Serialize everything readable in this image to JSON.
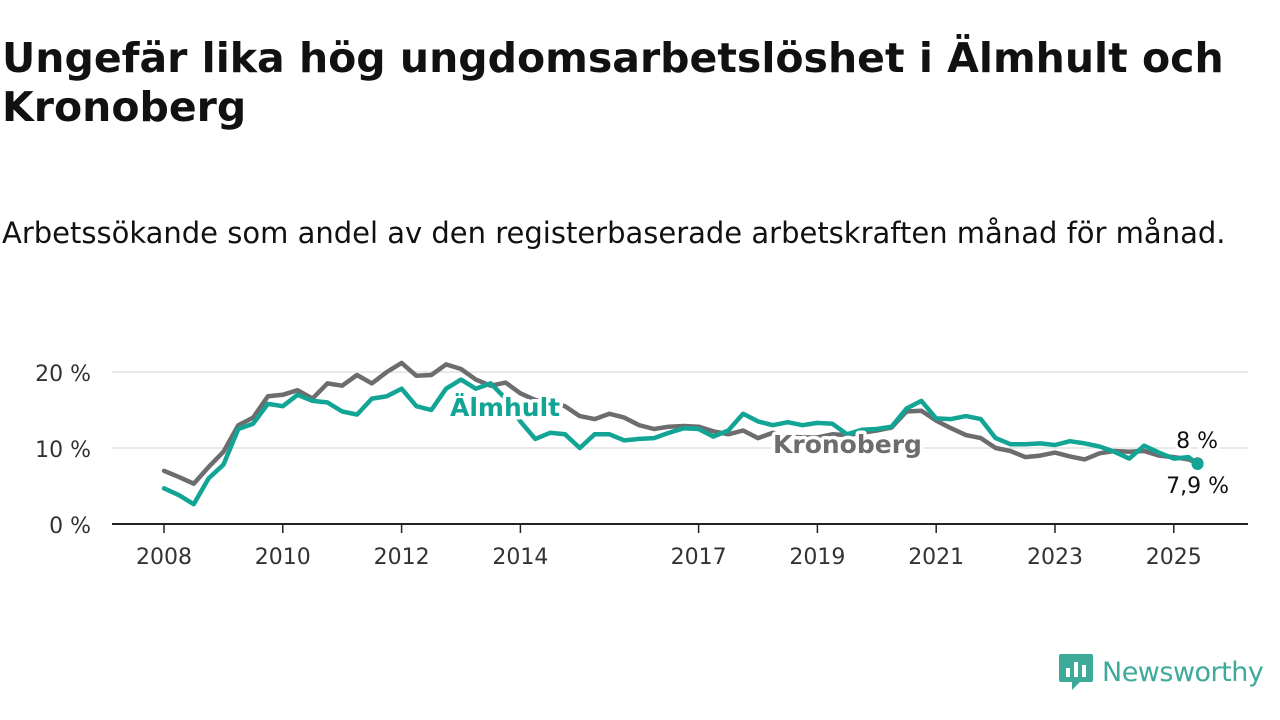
{
  "title": "Ungefär lika hög ungdomsarbetslöshet i Älmhult och Kronoberg",
  "subtitle": "Arbetssökande som andel av den registerbaserade arbetskraften månad för månad.",
  "brand": {
    "name": "Newsworthy",
    "color": "#3daa9a"
  },
  "chart_data": {
    "type": "line",
    "x_unit": "year",
    "ylim": [
      0,
      20
    ],
    "xlim": [
      2007.6,
      2026.2
    ],
    "y_ticks": [
      0,
      10,
      20
    ],
    "y_tick_labels": [
      "0 %",
      "10 %",
      "20 %"
    ],
    "x_ticks": [
      2008,
      2010,
      2012,
      2014,
      2017,
      2019,
      2021,
      2023,
      2025
    ],
    "x_tick_labels": [
      "2008",
      "2010",
      "2012",
      "2014",
      "2017",
      "2019",
      "2021",
      "2023",
      "2025"
    ],
    "grid": true,
    "series": [
      {
        "name": "Kronoberg",
        "color": "#6d6d6f",
        "end_label": "8 %",
        "x": [
          2008.0,
          2008.25,
          2008.5,
          2008.75,
          2009.0,
          2009.25,
          2009.5,
          2009.75,
          2010.0,
          2010.25,
          2010.5,
          2010.75,
          2011.0,
          2011.25,
          2011.5,
          2011.75,
          2012.0,
          2012.25,
          2012.5,
          2012.75,
          2013.0,
          2013.25,
          2013.5,
          2013.75,
          2014.0,
          2014.25,
          2014.5,
          2014.75,
          2015.0,
          2015.25,
          2015.5,
          2015.75,
          2016.0,
          2016.25,
          2016.5,
          2016.75,
          2017.0,
          2017.25,
          2017.5,
          2017.75,
          2018.0,
          2018.25,
          2018.5,
          2018.75,
          2019.0,
          2019.25,
          2019.5,
          2019.75,
          2020.0,
          2020.25,
          2020.5,
          2020.75,
          2021.0,
          2021.25,
          2021.5,
          2021.75,
          2022.0,
          2022.25,
          2022.5,
          2022.75,
          2023.0,
          2023.25,
          2023.5,
          2023.75,
          2024.0,
          2024.25,
          2024.5,
          2024.75,
          2025.0,
          2025.25,
          2025.4
        ],
        "values": [
          7.0,
          6.2,
          5.3,
          7.5,
          9.5,
          13.0,
          14.0,
          16.8,
          17.0,
          17.6,
          16.5,
          18.5,
          18.2,
          19.6,
          18.5,
          20.0,
          21.2,
          19.5,
          19.6,
          21.0,
          20.4,
          19.0,
          18.2,
          18.6,
          17.2,
          16.3,
          16.0,
          15.5,
          14.2,
          13.8,
          14.5,
          14.0,
          13.0,
          12.5,
          12.8,
          12.9,
          12.8,
          12.2,
          11.8,
          12.3,
          11.3,
          12.0,
          11.5,
          11.4,
          11.4,
          11.8,
          11.7,
          12.0,
          12.3,
          12.7,
          14.8,
          14.9,
          13.6,
          12.6,
          11.7,
          11.3,
          10.0,
          9.6,
          8.8,
          9.0,
          9.4,
          8.9,
          8.5,
          9.3,
          9.6,
          9.5,
          9.6,
          9.0,
          8.8,
          8.5,
          8.0
        ]
      },
      {
        "name": "Älmhult",
        "color": "#12a596",
        "end_label": "7,9 %",
        "x": [
          2008.0,
          2008.25,
          2008.5,
          2008.75,
          2009.0,
          2009.25,
          2009.5,
          2009.75,
          2010.0,
          2010.25,
          2010.5,
          2010.75,
          2011.0,
          2011.25,
          2011.5,
          2011.75,
          2012.0,
          2012.25,
          2012.5,
          2012.75,
          2013.0,
          2013.25,
          2013.5,
          2013.75,
          2014.0,
          2014.25,
          2014.5,
          2014.75,
          2015.0,
          2015.25,
          2015.5,
          2015.75,
          2016.0,
          2016.25,
          2016.5,
          2016.75,
          2017.0,
          2017.25,
          2017.5,
          2017.75,
          2018.0,
          2018.25,
          2018.5,
          2018.75,
          2019.0,
          2019.25,
          2019.5,
          2019.75,
          2020.0,
          2020.25,
          2020.5,
          2020.75,
          2021.0,
          2021.25,
          2021.5,
          2021.75,
          2022.0,
          2022.25,
          2022.5,
          2022.75,
          2023.0,
          2023.25,
          2023.5,
          2023.75,
          2024.0,
          2024.25,
          2024.5,
          2024.75,
          2025.0,
          2025.25,
          2025.4
        ],
        "values": [
          4.7,
          3.8,
          2.6,
          6.0,
          7.8,
          12.5,
          13.2,
          15.8,
          15.5,
          17.0,
          16.2,
          16.0,
          14.8,
          14.4,
          16.5,
          16.8,
          17.8,
          15.5,
          15.0,
          17.8,
          19.0,
          17.8,
          18.5,
          16.5,
          13.5,
          11.2,
          12.0,
          11.8,
          10.0,
          11.8,
          11.8,
          11.0,
          11.2,
          11.3,
          12.0,
          12.6,
          12.5,
          11.5,
          12.3,
          14.5,
          13.5,
          13.0,
          13.4,
          13.0,
          13.3,
          13.2,
          11.8,
          12.4,
          12.5,
          12.8,
          15.2,
          16.2,
          13.9,
          13.8,
          14.2,
          13.8,
          11.3,
          10.5,
          10.5,
          10.6,
          10.4,
          10.9,
          10.6,
          10.2,
          9.5,
          8.6,
          10.3,
          9.4,
          8.6,
          8.8,
          7.9
        ]
      }
    ],
    "annotations": [
      {
        "text": "Älmhult",
        "series": "Älmhult"
      },
      {
        "text": "Kronoberg",
        "series": "Kronoberg"
      }
    ]
  }
}
